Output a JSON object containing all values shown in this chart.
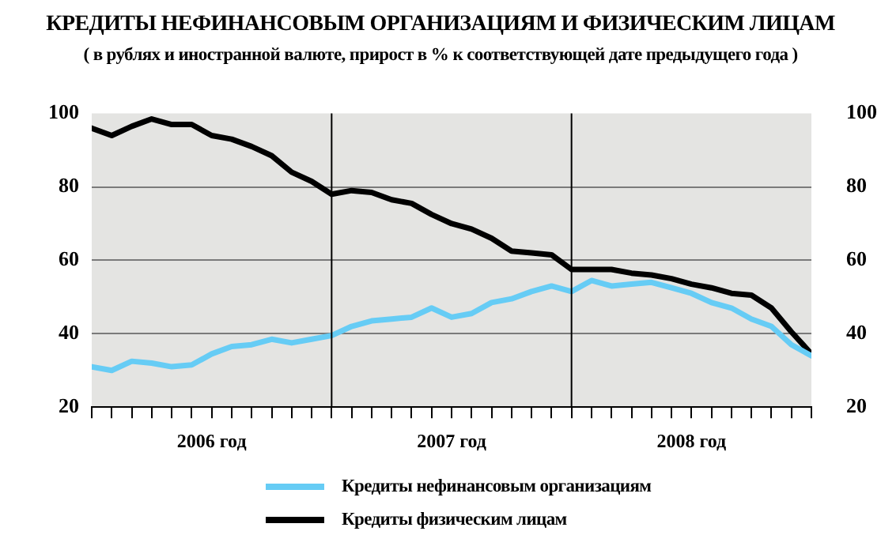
{
  "chart_data": {
    "type": "line",
    "title": "КРЕДИТЫ НЕФИНАНСОВЫМ ОРГАНИЗАЦИЯМ И ФИЗИЧЕСКИМ ЛИЦАМ",
    "subtitle": "( в рублях и иностранной валюте, прирост в % к соответствующей дате предыдущего года )",
    "x": [
      "2006-01",
      "2006-02",
      "2006-03",
      "2006-04",
      "2006-05",
      "2006-06",
      "2006-07",
      "2006-08",
      "2006-09",
      "2006-10",
      "2006-11",
      "2006-12",
      "2007-01",
      "2007-02",
      "2007-03",
      "2007-04",
      "2007-05",
      "2007-06",
      "2007-07",
      "2007-08",
      "2007-09",
      "2007-10",
      "2007-11",
      "2007-12",
      "2008-01",
      "2008-02",
      "2008-03",
      "2008-04",
      "2008-05",
      "2008-06",
      "2008-07",
      "2008-08",
      "2008-09",
      "2008-10",
      "2008-11",
      "2008-12",
      "2009-01"
    ],
    "series": [
      {
        "name": "Кредиты нефинансовым организациям",
        "color": "#66ccf5",
        "values": [
          31,
          30,
          32.5,
          32,
          31,
          31.5,
          34.5,
          36.5,
          37,
          38.5,
          37.5,
          38.5,
          39.5,
          42,
          43.5,
          44,
          44.5,
          47,
          44.5,
          45.5,
          48.5,
          49.5,
          51.5,
          53,
          51.5,
          54.5,
          53,
          53.5,
          54,
          52.5,
          51,
          48.5,
          47,
          44,
          42,
          37,
          34
        ]
      },
      {
        "name": "Кредиты физическим лицам",
        "color": "#000000",
        "values": [
          96,
          94,
          96.5,
          98.5,
          97,
          97,
          94,
          93,
          91,
          88.5,
          84,
          81.5,
          78,
          79,
          78.5,
          76.5,
          75.5,
          72.5,
          70,
          68.5,
          66,
          62.5,
          62,
          61.5,
          57.5,
          57.5,
          57.5,
          56.5,
          56,
          55,
          53.5,
          52.5,
          51,
          50.5,
          47,
          40.5,
          34.5
        ]
      }
    ],
    "xlim": [
      "2006-01",
      "2009-01"
    ],
    "xticks": [
      {
        "value": "2006-01",
        "label": null
      },
      {
        "value": "2006-02",
        "label": null
      },
      {
        "value": "2006-03",
        "label": null
      },
      {
        "value": "2006-04",
        "label": null
      },
      {
        "value": "2006-05",
        "label": null
      },
      {
        "value": "2006-06",
        "label": null
      },
      {
        "value": "2006-07",
        "label": "2006 год"
      },
      {
        "value": "2006-08",
        "label": null
      },
      {
        "value": "2006-09",
        "label": null
      },
      {
        "value": "2006-10",
        "label": null
      },
      {
        "value": "2006-11",
        "label": null
      },
      {
        "value": "2006-12",
        "label": null
      },
      {
        "value": "2007-01",
        "label": null
      },
      {
        "value": "2007-02",
        "label": null
      },
      {
        "value": "2007-03",
        "label": null
      },
      {
        "value": "2007-04",
        "label": null
      },
      {
        "value": "2007-05",
        "label": null
      },
      {
        "value": "2007-06",
        "label": null
      },
      {
        "value": "2007-07",
        "label": "2007 год"
      },
      {
        "value": "2007-08",
        "label": null
      },
      {
        "value": "2007-09",
        "label": null
      },
      {
        "value": "2007-10",
        "label": null
      },
      {
        "value": "2007-11",
        "label": null
      },
      {
        "value": "2007-12",
        "label": null
      },
      {
        "value": "2008-01",
        "label": null
      },
      {
        "value": "2008-02",
        "label": null
      },
      {
        "value": "2008-03",
        "label": null
      },
      {
        "value": "2008-04",
        "label": null
      },
      {
        "value": "2008-05",
        "label": null
      },
      {
        "value": "2008-06",
        "label": null
      },
      {
        "value": "2008-07",
        "label": "2008 год"
      },
      {
        "value": "2008-08",
        "label": null
      },
      {
        "value": "2008-09",
        "label": null
      },
      {
        "value": "2008-10",
        "label": null
      },
      {
        "value": "2008-11",
        "label": null
      },
      {
        "value": "2008-12",
        "label": null
      },
      {
        "value": "2009-01",
        "label": null
      }
    ],
    "ylim": [
      20,
      100
    ],
    "yticks": [
      20,
      40,
      60,
      80,
      100
    ],
    "y2lim": [
      20,
      100
    ],
    "y2ticks": [
      20,
      40,
      60,
      80,
      100
    ],
    "ref_lines": [
      {
        "axis": "x",
        "value": "2007-01",
        "color": "#000000"
      },
      {
        "axis": "x",
        "value": "2008-01",
        "color": "#000000"
      }
    ],
    "grid": "y",
    "legend": "bottom",
    "marker": "none",
    "line_style": "solid"
  }
}
